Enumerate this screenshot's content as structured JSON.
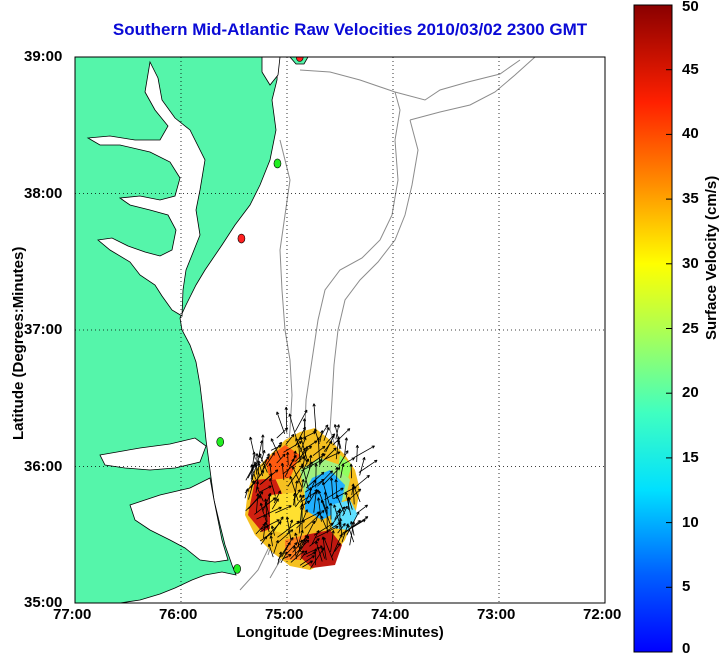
{
  "title": "Southern Mid-Atlantic Raw Velocities 2010/03/02 2300 GMT",
  "chart_data": {
    "type": "map",
    "xlabel": "Longitude (Degrees:Minutes)",
    "ylabel": "Latitude (Degrees:Minutes)",
    "xlim": [
      -77,
      -72
    ],
    "ylim": [
      35,
      39
    ],
    "x_ticks": [
      -77,
      -76,
      -75,
      -74,
      -73,
      -72
    ],
    "x_tick_labels": [
      "77:00",
      "76:00",
      "75:00",
      "74:00",
      "73:00",
      "72:00"
    ],
    "y_ticks": [
      35,
      36,
      37,
      38,
      39
    ],
    "y_tick_labels": [
      "35:00",
      "36:00",
      "37:00",
      "38:00",
      "39:00"
    ],
    "grid": true,
    "grid_style": "dotted",
    "land_color": "#55f5aa",
    "colorbar": {
      "label": "Surface Velocity (cm/s)",
      "min": 0,
      "max": 50,
      "ticks": [
        0,
        5,
        10,
        15,
        20,
        25,
        30,
        35,
        40,
        45,
        50
      ],
      "colormap": "jet"
    },
    "stations": [
      {
        "lon": -74.88,
        "lat": 39.0,
        "color": "#ff2020"
      },
      {
        "lon": -75.09,
        "lat": 38.22,
        "color": "#22ee22"
      },
      {
        "lon": -75.43,
        "lat": 37.67,
        "color": "#ff2020"
      },
      {
        "lon": -75.63,
        "lat": 36.18,
        "color": "#22ee22"
      },
      {
        "lon": -75.47,
        "lat": 35.25,
        "color": "#22ee22"
      }
    ]
  }
}
